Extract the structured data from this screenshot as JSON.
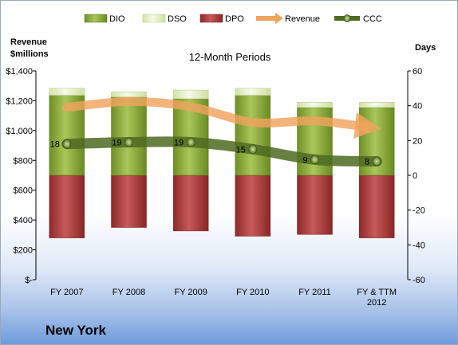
{
  "footer": {
    "city": "New York"
  },
  "chart_data": {
    "type": "bar",
    "title": "12-Month Periods",
    "categories": [
      [
        "FY 2007"
      ],
      [
        "FY 2008"
      ],
      [
        "FY 2009"
      ],
      [
        "FY 2010"
      ],
      [
        "FY 2011"
      ],
      [
        "FY & TTM",
        "2012"
      ]
    ],
    "left_axis": {
      "title_lines": [
        "Revenue",
        "$millions"
      ],
      "range": [
        0,
        1400
      ],
      "ticks": [
        "$-",
        "$200",
        "$400",
        "$600",
        "$800",
        "$1,000",
        "$1,200",
        "$1,400"
      ]
    },
    "right_axis": {
      "title": "Days",
      "range": [
        -60,
        60
      ],
      "ticks": [
        "-60",
        "-40",
        "-20",
        "0",
        "20",
        "40",
        "60"
      ]
    },
    "legend": {
      "position": "top",
      "entries": [
        "DIO",
        "DSO",
        "DPO",
        "Revenue",
        "CCC"
      ]
    },
    "series": [
      {
        "name": "DIO",
        "axis": "right",
        "values": [
          46,
          45,
          44,
          46,
          39,
          39
        ],
        "color": "#8fae3a"
      },
      {
        "name": "DSO",
        "axis": "right",
        "values": [
          4,
          3,
          5,
          4,
          3,
          3
        ],
        "color": "#e4efc3"
      },
      {
        "name": "DPO",
        "axis": "right",
        "values": [
          -36,
          -30,
          -32,
          -35,
          -34,
          -36
        ],
        "color": "#b13a3a"
      },
      {
        "name": "Revenue",
        "axis": "left",
        "values": [
          1155,
          1195,
          1160,
          1055,
          1065,
          1025
        ],
        "color": "#f0a35e"
      },
      {
        "name": "CCC",
        "axis": "right",
        "values": [
          18,
          19,
          19,
          15,
          9,
          8
        ],
        "labels": [
          "18",
          "19",
          "19",
          "15",
          "9",
          "8"
        ],
        "color": "#5a7a2a"
      }
    ],
    "grid": false
  }
}
